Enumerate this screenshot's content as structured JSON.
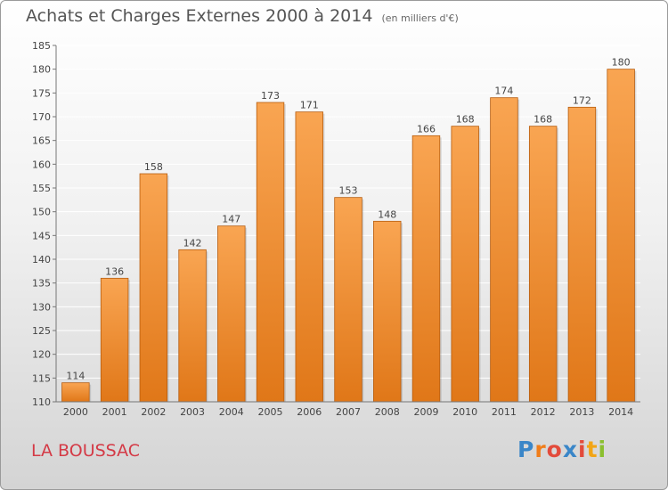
{
  "header": {
    "title": "Achats et Charges Externes 2000 à 2014",
    "subtitle": "(en milliers d'€)"
  },
  "footer": {
    "city": "LA BOUSSAC",
    "logo_text": "Proxiti"
  },
  "colors": {
    "bar_top": "#f9a552",
    "bar_bottom": "#e07718",
    "bar_side": "#b65c0e",
    "grid": "#ffffff",
    "city": "#d43a46"
  },
  "chart_data": {
    "type": "bar",
    "categories": [
      "2000",
      "2001",
      "2002",
      "2003",
      "2004",
      "2005",
      "2006",
      "2007",
      "2008",
      "2009",
      "2010",
      "2011",
      "2012",
      "2013",
      "2014"
    ],
    "values": [
      114,
      136,
      158,
      142,
      147,
      173,
      171,
      153,
      148,
      166,
      168,
      174,
      168,
      172,
      180
    ],
    "ylim": [
      110,
      185
    ],
    "yticks": [
      110,
      115,
      120,
      125,
      130,
      135,
      140,
      145,
      150,
      155,
      160,
      165,
      170,
      175,
      180,
      185
    ],
    "grid": true,
    "data_labels": true,
    "legend": "none"
  }
}
